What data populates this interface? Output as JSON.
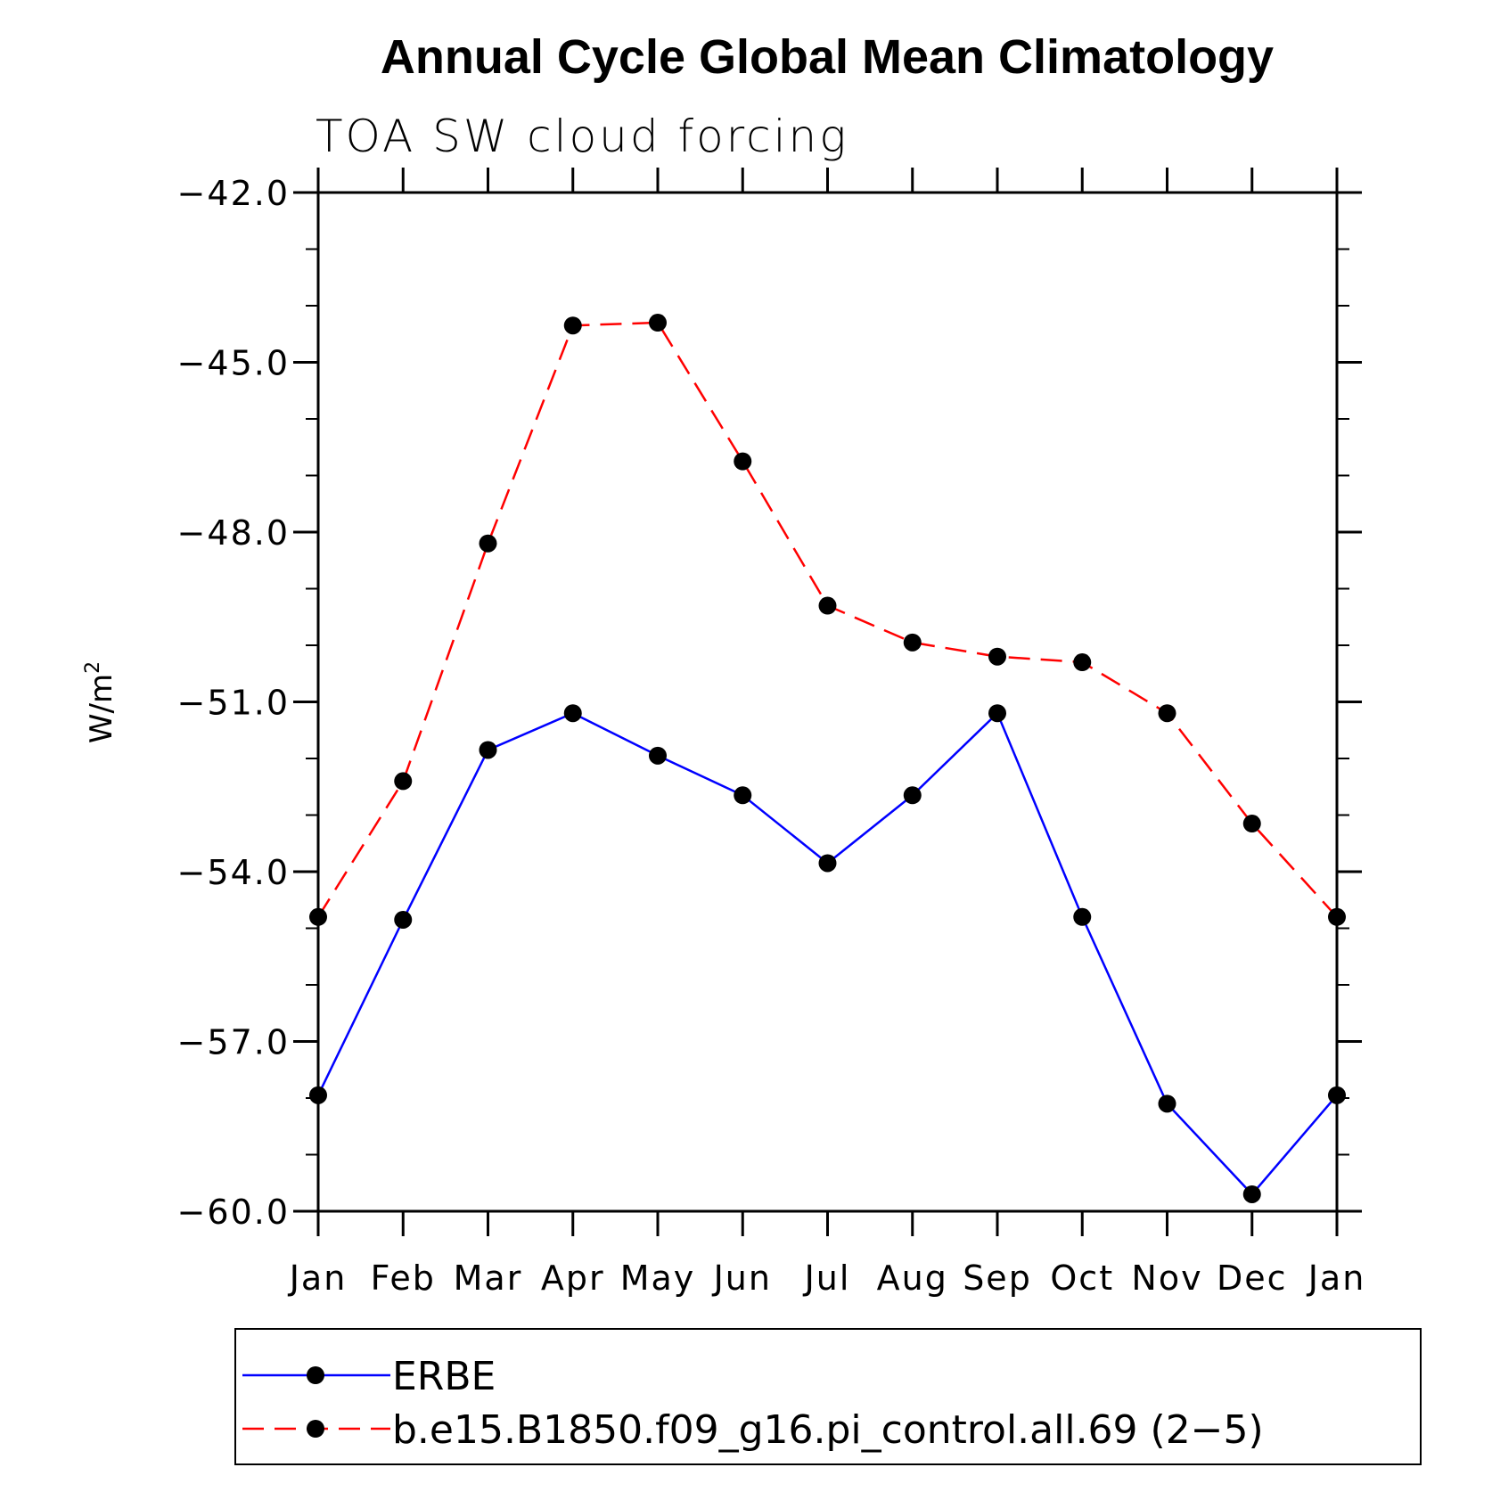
{
  "chart_data": {
    "type": "line",
    "title": "Annual Cycle Global Mean Climatology",
    "subtitle": "TOA SW cloud forcing",
    "xlabel": "",
    "ylabel": "W/m",
    "ylabel_superscript": "2",
    "ylim": [
      -60.0,
      -42.0
    ],
    "yticks": [
      "-60.0",
      "-57.0",
      "-54.0",
      "-51.0",
      "-48.0",
      "-45.0",
      "-42.0"
    ],
    "ytick_values": [
      -60,
      -57,
      -54,
      -51,
      -48,
      -45,
      -42
    ],
    "categories": [
      "Jan",
      "Feb",
      "Mar",
      "Apr",
      "May",
      "Jun",
      "Jul",
      "Aug",
      "Sep",
      "Oct",
      "Nov",
      "Dec",
      "Jan"
    ],
    "legend_position": "bottom",
    "series": [
      {
        "name": "ERBE",
        "color": "#0000ff",
        "dash": "solid",
        "values": [
          -57.95,
          -54.85,
          -51.85,
          -51.2,
          -51.95,
          -52.65,
          -53.85,
          -52.65,
          -51.2,
          -54.8,
          -58.1,
          -59.7,
          -57.95
        ]
      },
      {
        "name": "b.e15.B1850.f09_g16.pi_control.all.69 (2-5)",
        "color": "#ff0000",
        "dash": "dashed",
        "values": [
          -54.8,
          -52.4,
          -48.2,
          -44.35,
          -44.3,
          -46.75,
          -49.3,
          -49.95,
          -50.2,
          -50.3,
          -51.2,
          -53.15,
          -54.8
        ]
      }
    ]
  }
}
